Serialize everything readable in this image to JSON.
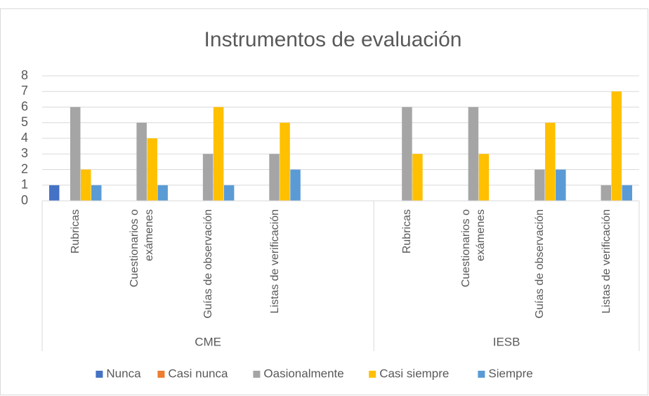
{
  "chart_data": {
    "type": "bar",
    "title": "Instrumentos de evaluación",
    "groups": [
      {
        "name": "CME",
        "categories": [
          "Rubricas",
          "Cuestionarios o exámenes",
          "Guías de observación",
          "Listas de verificación",
          null
        ]
      },
      {
        "name": "IESB",
        "categories": [
          "Rubricas",
          "Cuestionarios o exámenes",
          "Guías de observación",
          "Listas de verificación"
        ]
      }
    ],
    "series": [
      {
        "name": "Nunca",
        "color": "#4472c4",
        "values": [
          1,
          null,
          null,
          null,
          null,
          null,
          null,
          null,
          null
        ]
      },
      {
        "name": "Casi nunca",
        "color": "#ed7d31",
        "values": [
          null,
          null,
          null,
          null,
          null,
          null,
          null,
          null,
          null
        ]
      },
      {
        "name": "Oasionalmente",
        "color": "#a5a5a5",
        "values": [
          6,
          5,
          3,
          3,
          null,
          6,
          6,
          2,
          1
        ]
      },
      {
        "name": "Casi siempre",
        "color": "#ffc000",
        "values": [
          2,
          4,
          6,
          5,
          null,
          3,
          3,
          5,
          7
        ]
      },
      {
        "name": "Siempre",
        "color": "#5b9bd5",
        "values": [
          1,
          1,
          1,
          2,
          null,
          null,
          null,
          2,
          1
        ]
      }
    ],
    "ylim": [
      0,
      8
    ],
    "yticks": [
      0,
      1,
      2,
      3,
      4,
      5,
      6,
      7,
      8
    ],
    "grid": true,
    "legend": "bottom"
  }
}
